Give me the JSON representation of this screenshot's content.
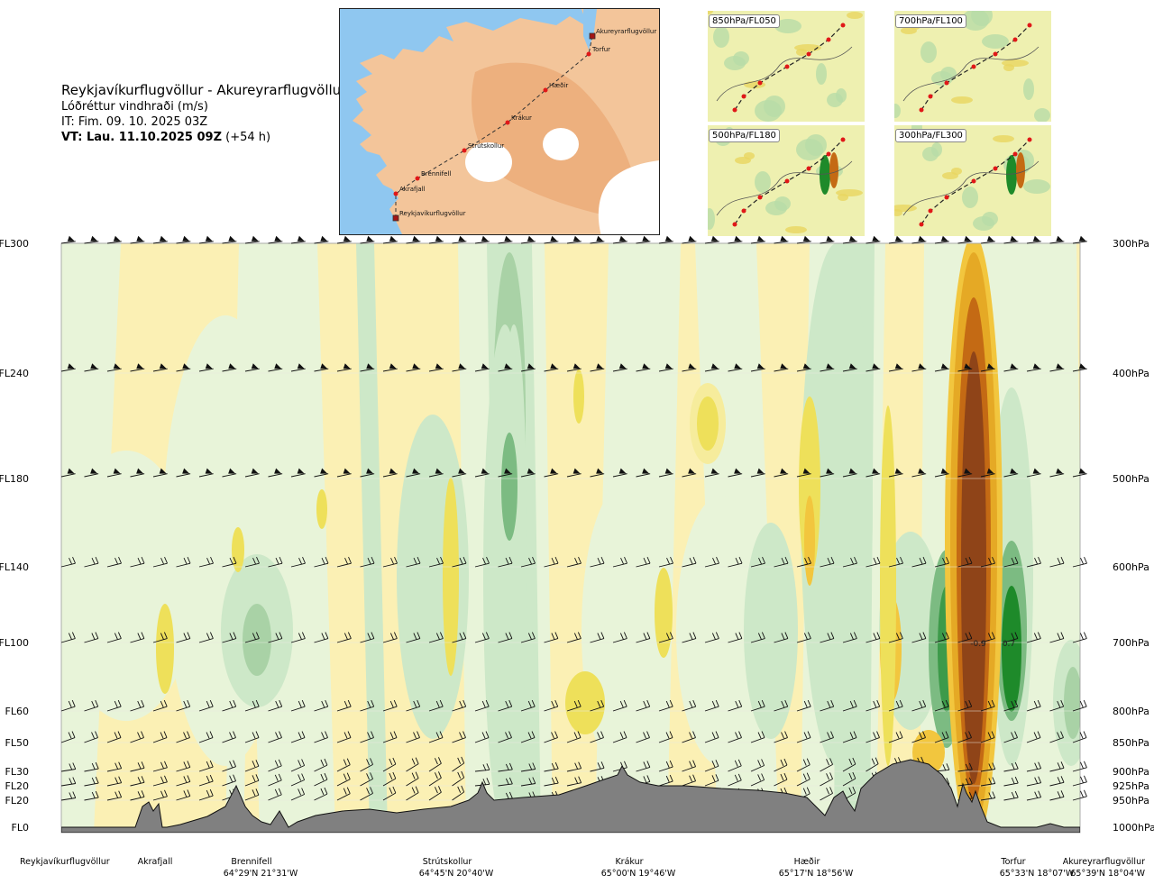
{
  "header": {
    "route_title": "Reykjavíkurflugvöllur - Akureyrarflugvöllur",
    "variable": "Lóðréttur vindhraði (m/s)",
    "issue_time": "IT: Fim. 09. 10. 2025 03Z",
    "valid_label": "VT: Lau. 11.10.2025 09Z",
    "valid_offset": "(+54 h)"
  },
  "route_map": {
    "waypoints": [
      {
        "name": "Reykjavíkurflugvöllur",
        "kind": "airport"
      },
      {
        "name": "Akrafjall",
        "kind": "point"
      },
      {
        "name": "Brennifell",
        "kind": "point"
      },
      {
        "name": "Strútskollur",
        "kind": "point"
      },
      {
        "name": "Krákur",
        "kind": "point"
      },
      {
        "name": "Hæðir",
        "kind": "point"
      },
      {
        "name": "Torfur",
        "kind": "point"
      },
      {
        "name": "Akureyrarflugvöllur",
        "kind": "airport"
      }
    ],
    "colors": {
      "sea": "#8fc7f0",
      "land": "#f3c59a",
      "highland": "#e9a672",
      "glacier": "#ffffff"
    }
  },
  "level_maps": [
    {
      "label": "850hPa/FL050"
    },
    {
      "label": "700hPa/FL100"
    },
    {
      "label": "500hPa/FL180"
    },
    {
      "label": "300hPa/FL300"
    }
  ],
  "chart_data": {
    "type": "heatmap",
    "variable": "vertical wind speed (m/s)",
    "x_stations": [
      {
        "name": "Reykjavíkurflugvöllur",
        "coord": ""
      },
      {
        "name": "Akrafjall",
        "coord": ""
      },
      {
        "name": "Brennifell",
        "coord": "64°29'N 21°31'W"
      },
      {
        "name": "Strútskollur",
        "coord": "64°45'N 20°40'W"
      },
      {
        "name": "Krákur",
        "coord": "65°00'N 19°46'W"
      },
      {
        "name": "Hæðir",
        "coord": "65°17'N 18°56'W"
      },
      {
        "name": "Torfur",
        "coord": "65°33'N 18°07'W"
      },
      {
        "name": "Akureyrarflugvöllur",
        "coord": "65°39'N 18°04'W"
      }
    ],
    "y_left_levels": [
      "FL300",
      "FL240",
      "FL180",
      "FL140",
      "FL100",
      "FL60",
      "FL50",
      "FL30",
      "FL20",
      "FL20",
      "FL0"
    ],
    "y_right_levels": [
      "300hPa",
      "400hPa",
      "500hPa",
      "600hPa",
      "700hPa",
      "800hPa",
      "850hPa",
      "900hPa",
      "925hPa",
      "950hPa",
      "1000hPa"
    ],
    "pressure_range_hPa": [
      300,
      1000
    ],
    "contour_labels": [
      "-0.9",
      "0.7"
    ],
    "color_scale": {
      "negative": [
        "#fbf0b4",
        "#f6ec9c",
        "#eee05a",
        "#f2c63e",
        "#e5a925",
        "#c46a14",
        "#8f4418"
      ],
      "positive": [
        "#e8f4d9",
        "#cde8c8",
        "#a9d2a6",
        "#7cbb82",
        "#3d9a4a",
        "#1e8a2a"
      ],
      "terrain": "#808080"
    }
  }
}
